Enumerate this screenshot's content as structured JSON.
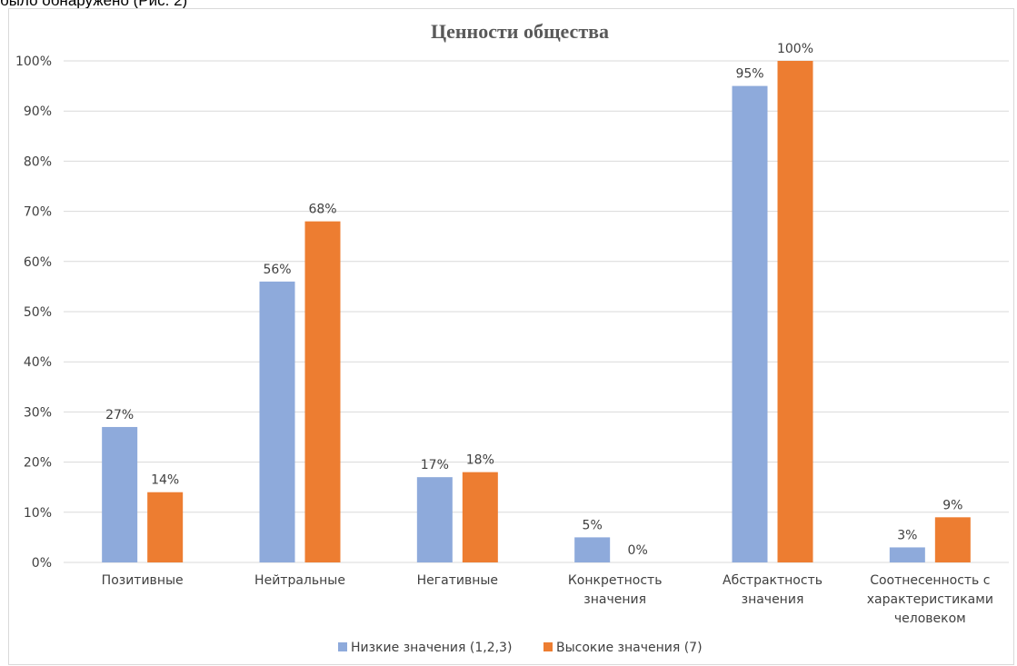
{
  "header_text": "было обнаружено (Рис. 2)",
  "chart_data": {
    "type": "bar",
    "title": "Ценности общества",
    "categories": [
      [
        "Позитивные"
      ],
      [
        "Нейтральные"
      ],
      [
        "Негативные"
      ],
      [
        "Конкретность",
        "значения"
      ],
      [
        "Абстрактность",
        "значения"
      ],
      [
        "Соотнесенность с",
        "характеристиками",
        "человеком"
      ]
    ],
    "series": [
      {
        "name": "Низкие значения (1,2,3)",
        "color": "#8eaadb",
        "values": [
          27,
          56,
          17,
          5,
          95,
          3
        ],
        "labels": [
          "27%",
          "56%",
          "17%",
          "5%",
          "95%",
          "3%"
        ]
      },
      {
        "name": "Высокие значения (7)",
        "color": "#ed7d31",
        "values": [
          14,
          68,
          18,
          0,
          100,
          9
        ],
        "labels": [
          "14%",
          "68%",
          "18%",
          "0%",
          "100%",
          "9%"
        ]
      }
    ],
    "ylim": [
      0,
      100
    ],
    "yticks": [
      "0%",
      "10%",
      "20%",
      "30%",
      "40%",
      "50%",
      "60%",
      "70%",
      "80%",
      "90%",
      "100%"
    ],
    "grid": true,
    "legend": "bottom"
  }
}
